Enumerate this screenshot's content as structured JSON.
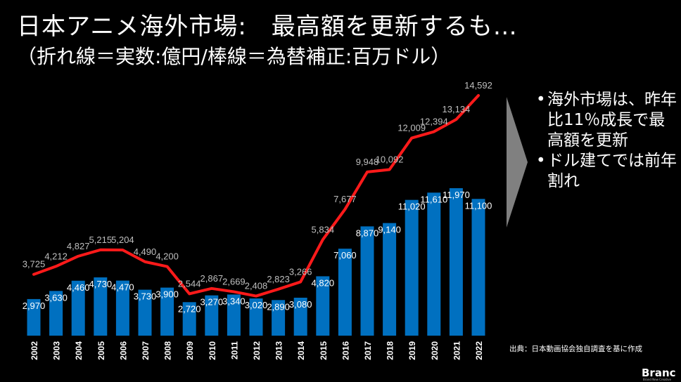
{
  "header": {
    "title": "日本アニメ海外市場:　最高額を更新するも…",
    "subtitle": "（折れ線＝実数:億円/棒線＝為替補正:百万ドル）"
  },
  "bullets": [
    {
      "text": "海外市場は、昨年比11％成長で最高額を更新"
    },
    {
      "text": "ドル建てでは前年割れ"
    }
  ],
  "source": "出典：日本動画協会独自調査を基に作成",
  "logo": "Branc",
  "logo_sub": "Brand New Creative",
  "chart_data": {
    "type": "bar",
    "categories": [
      "2002",
      "2003",
      "2004",
      "2005",
      "2006",
      "2007",
      "2008",
      "2009",
      "2010",
      "2011",
      "2012",
      "2013",
      "2014",
      "2015",
      "2016",
      "2017",
      "2018",
      "2019",
      "2020",
      "2021",
      "2022"
    ],
    "series": [
      {
        "type": "bar",
        "values": [
          2970,
          3630,
          4460,
          4730,
          4470,
          3730,
          3900,
          2720,
          3270,
          3340,
          3020,
          2890,
          3080,
          4820,
          7060,
          8870,
          9140,
          11020,
          11610,
          11970,
          11100
        ],
        "labels": [
          "2,970",
          "3,630",
          "4,460",
          "4,730",
          "4,470",
          "3,730",
          "3,900",
          "2,720",
          "3,270",
          "3,340",
          "3,020",
          "2,890",
          "3,080",
          "4,820",
          "7,060",
          "8,870",
          "9,140",
          "11,020",
          "11,610",
          "11,970",
          "11,100"
        ]
      },
      {
        "type": "line",
        "values": [
          3725,
          4212,
          4827,
          5215,
          5204,
          4490,
          4200,
          2544,
          2867,
          2669,
          2408,
          2823,
          3266,
          5834,
          7677,
          9948,
          10092,
          12009,
          12394,
          13134,
          14592
        ],
        "labels": [
          "3,725",
          "4,212",
          "4,827",
          "5,215",
          "5,204",
          "4,490",
          "4,200",
          "2,544",
          "2,867",
          "2,669",
          "2,408",
          "2,823",
          "3,266",
          "5,834",
          "7,677",
          "9,948",
          "10,092",
          "12,009",
          "12,394",
          "13,134",
          "14,592"
        ]
      }
    ],
    "colors": {
      "bar": "#0070C0",
      "line": "#FF1A1A",
      "bar_label": "#FFFFFF",
      "line_label": "#BFBFBF"
    }
  }
}
